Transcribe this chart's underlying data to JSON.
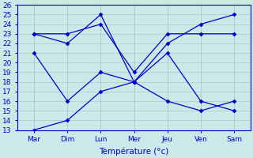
{
  "x_labels": [
    "Mar",
    "Dim",
    "Lun",
    "Mer",
    "Jeu",
    "Ven",
    "Sam"
  ],
  "x_positions": [
    0,
    1,
    2,
    3,
    4,
    5,
    6
  ],
  "series": [
    {
      "name": "max_high",
      "x": [
        0,
        1,
        2,
        3,
        4,
        5,
        6
      ],
      "y": [
        23,
        22,
        25,
        18,
        22,
        24,
        25
      ],
      "color": "#0000cc",
      "linestyle": "-",
      "marker": "D",
      "markersize": 2.5,
      "linewidth": 0.9
    },
    {
      "name": "max_low",
      "x": [
        0,
        1,
        2,
        3,
        4,
        5,
        6
      ],
      "y": [
        23,
        23,
        24,
        19,
        23,
        23,
        23
      ],
      "color": "#0000cc",
      "linestyle": "-",
      "marker": "D",
      "markersize": 2.5,
      "linewidth": 0.9
    },
    {
      "name": "min_high",
      "x": [
        0,
        1,
        2,
        3,
        4,
        5,
        6
      ],
      "y": [
        21,
        16,
        19,
        18,
        21,
        16,
        15
      ],
      "color": "#0000cc",
      "linestyle": "-",
      "marker": "D",
      "markersize": 2.5,
      "linewidth": 0.9
    },
    {
      "name": "min_low",
      "x": [
        0,
        1,
        2,
        3,
        4,
        5,
        6
      ],
      "y": [
        13,
        14,
        17,
        18,
        16,
        15,
        16
      ],
      "color": "#0000cc",
      "linestyle": "-",
      "marker": "D",
      "markersize": 2.5,
      "linewidth": 0.9
    }
  ],
  "ylim": [
    13,
    26
  ],
  "yticks": [
    13,
    14,
    15,
    16,
    17,
    18,
    19,
    20,
    21,
    22,
    23,
    24,
    25,
    26
  ],
  "xlabel": "Température (°c)",
  "bg_color": "#cce8e8",
  "line_color": "#0000cc",
  "grid_color": "#aacccc",
  "tick_label_color": "#0000cc",
  "xlabel_color": "#0000cc",
  "tick_fontsize": 6.5,
  "xlabel_fontsize": 7.5
}
